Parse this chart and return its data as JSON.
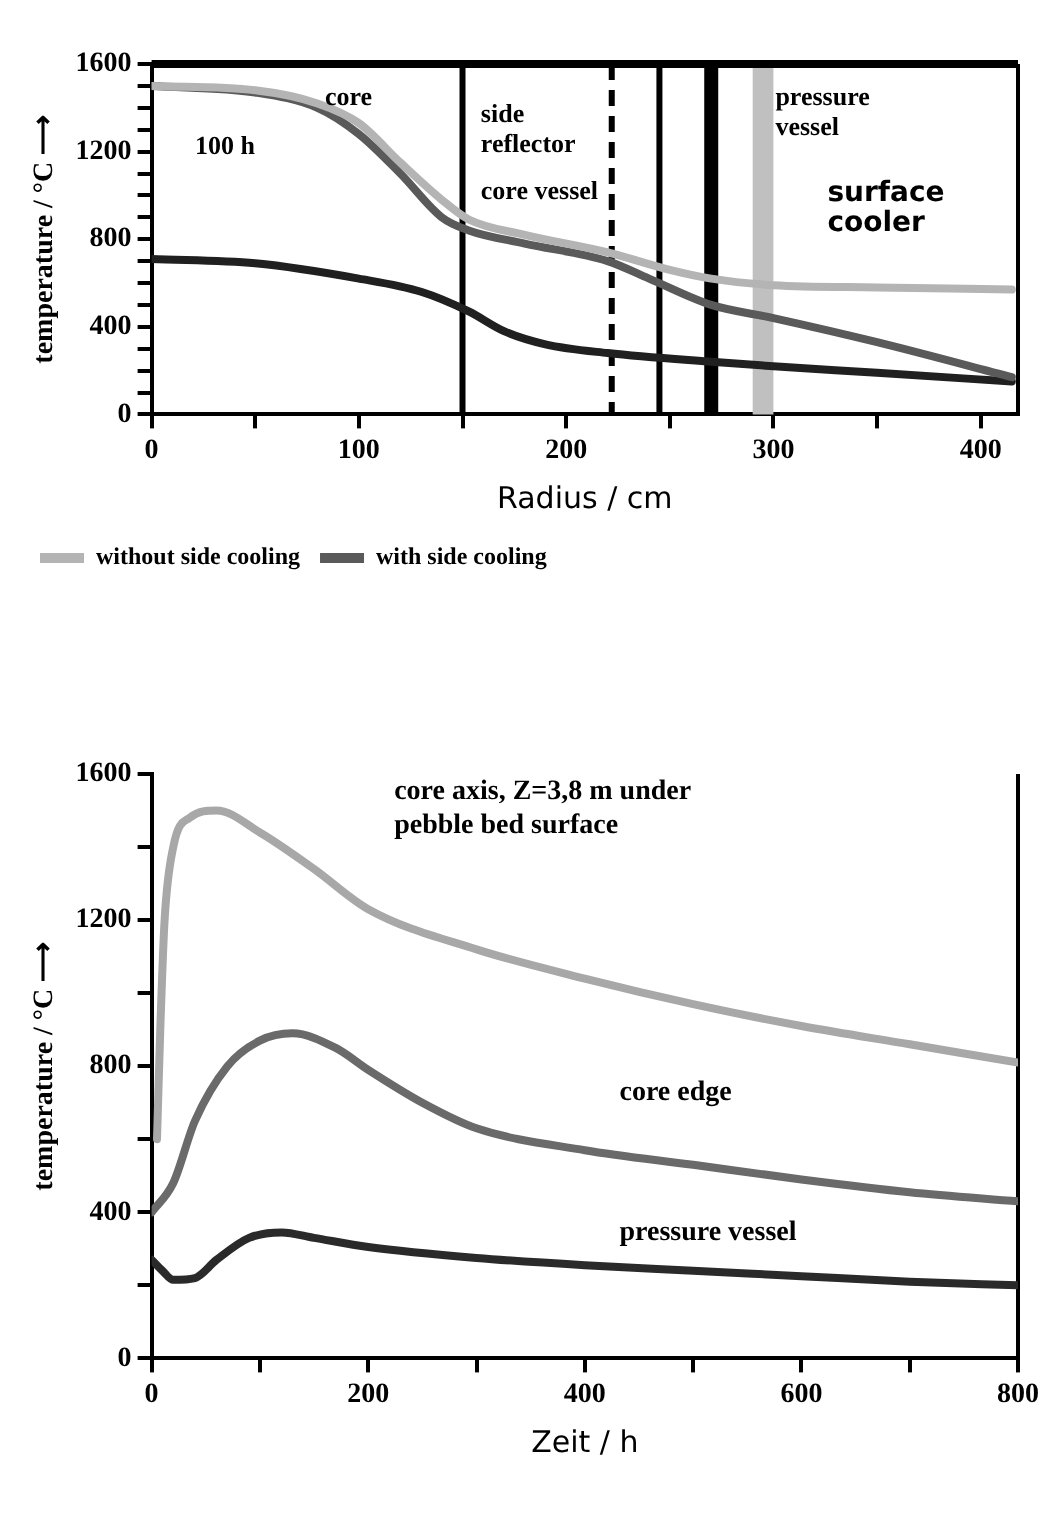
{
  "chart_data": [
    {
      "type": "line",
      "xlabel": "Radius / cm",
      "ylabel": "temperature / °C ⟶",
      "xlim": [
        0,
        418
      ],
      "ylim": [
        0,
        1600
      ],
      "xticks": [
        0,
        {
          "value": 50,
          "label": null
        },
        100,
        {
          "value": 150,
          "label": null
        },
        200,
        {
          "value": 250,
          "label": null
        },
        300,
        {
          "value": 350,
          "label": null
        },
        400
      ],
      "yticks": [
        0,
        {
          "value": 100,
          "label": null
        },
        {
          "value": 200,
          "label": null
        },
        {
          "value": 300,
          "label": null
        },
        400,
        {
          "value": 500,
          "label": null
        },
        {
          "value": 600,
          "label": null
        },
        {
          "value": 700,
          "label": null
        },
        800,
        {
          "value": 900,
          "label": null
        },
        {
          "value": 1000,
          "label": null
        },
        {
          "value": 1100,
          "label": null
        },
        1200,
        {
          "value": 1300,
          "label": null
        },
        {
          "value": 1400,
          "label": null
        },
        {
          "value": 1500,
          "label": null
        },
        1600
      ],
      "legend": "bottom",
      "marker": "none",
      "line_style": "solid",
      "grid": false,
      "series": [
        {
          "name": "without side cooling",
          "color": "#b4b4b4",
          "x": [
            0,
            50,
            80,
            100,
            120,
            140,
            153,
            180,
            220,
            250,
            270,
            300,
            350,
            415
          ],
          "values": [
            1500,
            1480,
            1420,
            1330,
            1150,
            980,
            890,
            820,
            740,
            660,
            620,
            590,
            580,
            570
          ]
        },
        {
          "name": "with side cooling",
          "color": "#5a5a5a",
          "x": [
            0,
            50,
            80,
            100,
            120,
            140,
            153,
            180,
            220,
            240,
            270,
            300,
            350,
            415
          ],
          "values": [
            1500,
            1470,
            1400,
            1280,
            1100,
            900,
            840,
            780,
            700,
            620,
            500,
            440,
            330,
            170
          ]
        },
        {
          "color": "#202020",
          "x": [
            0,
            50,
            100,
            130,
            153,
            170,
            190,
            220,
            270,
            300,
            350,
            415
          ],
          "values": [
            710,
            690,
            620,
            560,
            470,
            380,
            320,
            280,
            240,
            220,
            190,
            150
          ]
        }
      ],
      "ref_lines": [
        {
          "axis": "x",
          "value": 150,
          "color": "#000000",
          "line_style": "solid"
        },
        {
          "axis": "x",
          "value": 222,
          "color": "#000000",
          "line_style": "dashed"
        },
        {
          "axis": "x",
          "value": 245,
          "color": "#000000",
          "line_style": "solid"
        },
        {
          "axis": "x",
          "value": 270,
          "color": "#000000",
          "line_style": "solid"
        }
      ],
      "bands": [
        {
          "axis": "x",
          "from": 290,
          "to": 300,
          "color": "#c0c0c0"
        }
      ],
      "annotations": [
        "core",
        "100 h",
        "side reflector",
        "core vessel",
        "pressure vessel",
        "surface cooler"
      ]
    },
    {
      "type": "line",
      "xlabel": "Zeit / h",
      "ylabel": "temperature / °C ⟶",
      "xlim": [
        0,
        800
      ],
      "ylim": [
        0,
        1600
      ],
      "xticks": [
        0,
        {
          "value": 100,
          "label": null
        },
        200,
        {
          "value": 300,
          "label": null
        },
        400,
        {
          "value": 500,
          "label": null
        },
        600,
        {
          "value": 700,
          "label": null
        },
        800
      ],
      "yticks": [
        0,
        {
          "value": 200,
          "label": null
        },
        400,
        {
          "value": 600,
          "label": null
        },
        800,
        {
          "value": 1000,
          "label": null
        },
        1200,
        {
          "value": 1400,
          "label": null
        },
        1600
      ],
      "marker": "none",
      "line_style": "solid",
      "grid": false,
      "series": [
        {
          "name": "core axis, Z=3,8 m under pebble bed surface",
          "color": "#a8a8a8",
          "x": [
            5,
            8,
            12,
            20,
            35,
            60,
            100,
            150,
            200,
            300,
            400,
            500,
            600,
            700,
            800
          ],
          "values": [
            600,
            900,
            1200,
            1400,
            1480,
            1500,
            1440,
            1340,
            1230,
            1120,
            1040,
            970,
            910,
            860,
            810
          ]
        },
        {
          "name": "core edge",
          "color": "#6a6a6a",
          "x": [
            0,
            20,
            40,
            70,
            100,
            130,
            170,
            200,
            250,
            300,
            400,
            500,
            600,
            700,
            800
          ],
          "values": [
            400,
            480,
            650,
            800,
            870,
            890,
            850,
            790,
            700,
            630,
            570,
            530,
            490,
            455,
            430
          ]
        },
        {
          "name": "pressure vessel",
          "color": "#2a2a2a",
          "x": [
            0,
            10,
            20,
            40,
            60,
            90,
            120,
            150,
            200,
            300,
            400,
            500,
            600,
            700,
            800
          ],
          "values": [
            270,
            240,
            215,
            220,
            270,
            330,
            345,
            330,
            305,
            275,
            255,
            240,
            225,
            210,
            200
          ]
        }
      ]
    }
  ]
}
